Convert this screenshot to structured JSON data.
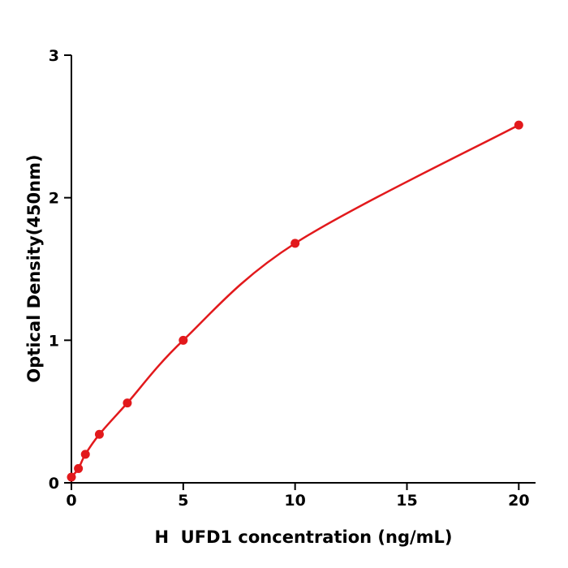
{
  "chart": {
    "xlabel": "H  UFD1 concentration (ng/mL)",
    "ylabel": "Optical Density(450nm)"
  },
  "chart_data": {
    "type": "scatter",
    "title": "",
    "xlabel": "H  UFD1 concentration (ng/mL)",
    "ylabel": "Optical Density(450nm)",
    "x": [
      0,
      0.313,
      0.625,
      1.25,
      2.5,
      5,
      10,
      20
    ],
    "y": [
      0.04,
      0.1,
      0.2,
      0.34,
      0.56,
      1.0,
      1.68,
      2.51
    ],
    "xticks": [
      0,
      5,
      10,
      15,
      20
    ],
    "yticks": [
      0,
      1,
      2,
      3
    ],
    "xlim": [
      0,
      20.75
    ],
    "ylim": [
      0,
      3
    ],
    "grid": false,
    "legend": null,
    "line_color": "#e2191c",
    "marker_color": "#e2191c",
    "axis_color": "#000000",
    "background_color": "#ffffff"
  }
}
